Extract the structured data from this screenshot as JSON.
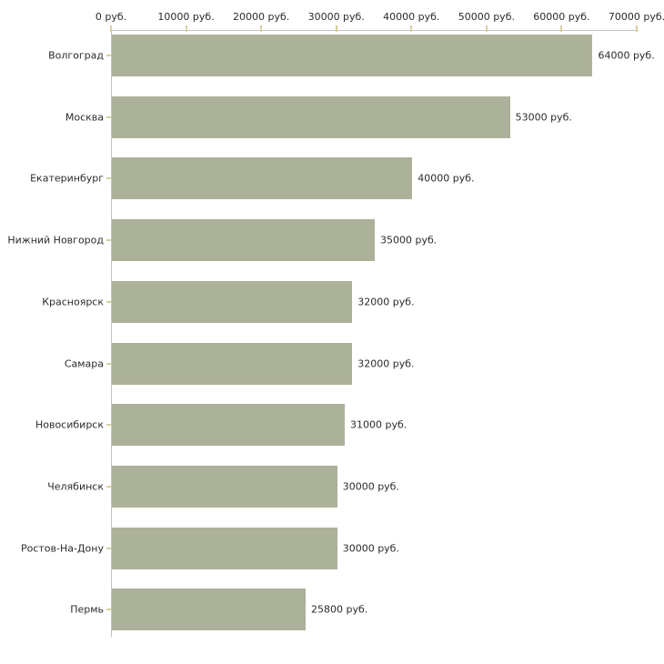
{
  "chart_data": {
    "type": "bar",
    "orientation": "horizontal",
    "title": "",
    "xlabel": "",
    "ylabel": "",
    "unit": "руб.",
    "categories": [
      "Волгоград",
      "Москва",
      "Екатеринбург",
      "Нижний Новгород",
      "Красноярск",
      "Самара",
      "Новосибирск",
      "Челябинск",
      "Ростов-На-Дону",
      "Пермь"
    ],
    "values": [
      64000,
      53000,
      40000,
      35000,
      32000,
      32000,
      31000,
      30000,
      30000,
      25800
    ],
    "value_labels": [
      "64000 руб.",
      "53000 руб.",
      "40000 руб.",
      "35000 руб.",
      "32000 руб.",
      "32000 руб.",
      "31000 руб.",
      "30000 руб.",
      "30000 руб.",
      "25800 руб."
    ],
    "x_axis": {
      "position": "top",
      "min": 0,
      "max": 70000,
      "ticks": [
        0,
        10000,
        20000,
        30000,
        40000,
        50000,
        60000,
        70000
      ],
      "tick_labels": [
        "0 руб.",
        "10000 руб.",
        "20000 руб.",
        "30000 руб.",
        "40000 руб.",
        "50000 руб.",
        "60000 руб.",
        "70000 руб."
      ]
    },
    "legend": null,
    "grid": false,
    "colors": {
      "bar": "#acb199",
      "axis_line": "#c3c3c3",
      "tick_mark": "#d6d0a0",
      "text": "#2b2b2b"
    }
  }
}
